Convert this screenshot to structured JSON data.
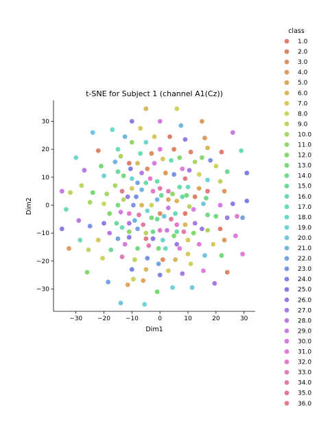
{
  "chart_data": {
    "type": "scatter",
    "title": "t-SNE for Subject 1 (channel A1(Cz))",
    "xlabel": "Dim1",
    "ylabel": "Dim2",
    "xlim": [
      -38,
      34
    ],
    "ylim": [
      -38,
      37.5
    ],
    "xticks": [
      -30,
      -20,
      -10,
      0,
      10,
      20,
      30
    ],
    "yticks": [
      -30,
      -20,
      -10,
      0,
      10,
      20,
      30
    ],
    "grid": false,
    "legend": {
      "title": "class",
      "placement": "right-outside",
      "entries": [
        "1.0",
        "2.0",
        "3.0",
        "4.0",
        "5.0",
        "6.0",
        "7.0",
        "8.0",
        "9.0",
        "10.0",
        "11.0",
        "12.0",
        "13.0",
        "14.0",
        "15.0",
        "16.0",
        "17.0",
        "18.0",
        "19.0",
        "20.0",
        "21.0",
        "22.0",
        "23.0",
        "24.0",
        "25.0",
        "26.0",
        "27.0",
        "28.0",
        "29.0",
        "30.0",
        "31.0",
        "32.0",
        "33.0",
        "34.0",
        "35.0",
        "36.0"
      ]
    },
    "colors": [
      "#de6f61",
      "#dc7857",
      "#da8452",
      "#d9904e",
      "#d79f4b",
      "#d4b04a",
      "#d2c24b",
      "#c8d04e",
      "#b4d051",
      "#a0d056",
      "#8ad25a",
      "#76d460",
      "#68d56a",
      "#62d57a",
      "#5fd68b",
      "#5dd69d",
      "#5dd6b1",
      "#5dd4c4",
      "#5fcfd4",
      "#62c0dc",
      "#65aedf",
      "#689be0",
      "#6c87e0",
      "#7174e0",
      "#7e6ee0",
      "#8e6ddf",
      "#9f6ddf",
      "#b06ddf",
      "#c26ddf",
      "#d26dde",
      "#dc6dd6",
      "#de6dc4",
      "#de6db1",
      "#de6d9e",
      "#de6d8b",
      "#de6d79"
    ],
    "points": [
      {
        "x": -5,
        "y": 34.5,
        "c": 5
      },
      {
        "x": 6,
        "y": 34.5,
        "c": 7
      },
      {
        "x": 15,
        "y": 30,
        "c": 3
      },
      {
        "x": -10,
        "y": 30,
        "c": 24
      },
      {
        "x": 0,
        "y": 30,
        "c": 29
      },
      {
        "x": 7.5,
        "y": 28.5,
        "c": 20
      },
      {
        "x": -17,
        "y": 27,
        "c": 17
      },
      {
        "x": -24,
        "y": 26,
        "c": 19
      },
      {
        "x": -7,
        "y": 27.5,
        "c": 6
      },
      {
        "x": 26,
        "y": 26,
        "c": 28
      },
      {
        "x": -12.5,
        "y": 24.5,
        "c": 20
      },
      {
        "x": 3.5,
        "y": 24.5,
        "c": 0
      },
      {
        "x": 16,
        "y": 24,
        "c": 3
      },
      {
        "x": -2,
        "y": 24.5,
        "c": 6
      },
      {
        "x": 9,
        "y": 23.5,
        "c": 25
      },
      {
        "x": -10,
        "y": 22.5,
        "c": 10
      },
      {
        "x": -5,
        "y": 22.5,
        "c": 17
      },
      {
        "x": -22,
        "y": 19.5,
        "c": 1
      },
      {
        "x": -15,
        "y": 20,
        "c": 16
      },
      {
        "x": 0,
        "y": 20,
        "c": 30
      },
      {
        "x": 5,
        "y": 20,
        "c": 1
      },
      {
        "x": 17,
        "y": 20.5,
        "c": 5
      },
      {
        "x": 11,
        "y": 19,
        "c": 1
      },
      {
        "x": 22,
        "y": 19,
        "c": 0
      },
      {
        "x": 29,
        "y": 19.5,
        "c": 16
      },
      {
        "x": -7,
        "y": 18.5,
        "c": 16
      },
      {
        "x": -3,
        "y": 18.5,
        "c": 2
      },
      {
        "x": -30,
        "y": 17,
        "c": 17
      },
      {
        "x": -14,
        "y": 17.5,
        "c": 9
      },
      {
        "x": 7,
        "y": 17,
        "c": 11
      },
      {
        "x": 15,
        "y": 17,
        "c": 11
      },
      {
        "x": -11,
        "y": 15,
        "c": 0
      },
      {
        "x": -8,
        "y": 15,
        "c": 5
      },
      {
        "x": -2,
        "y": 15,
        "c": 29
      },
      {
        "x": 1,
        "y": 16.5,
        "c": 6
      },
      {
        "x": 4,
        "y": 16,
        "c": 16
      },
      {
        "x": 12.5,
        "y": 15.5,
        "c": 9
      },
      {
        "x": 18,
        "y": 16,
        "c": 22
      },
      {
        "x": -16,
        "y": 15.5,
        "c": 20
      },
      {
        "x": -27,
        "y": 12.5,
        "c": 27
      },
      {
        "x": -21,
        "y": 14,
        "c": 12
      },
      {
        "x": -10.5,
        "y": 13,
        "c": 23
      },
      {
        "x": -4.5,
        "y": 13,
        "c": 2
      },
      {
        "x": 8,
        "y": 13,
        "c": 30
      },
      {
        "x": 10.5,
        "y": 12.5,
        "c": 26
      },
      {
        "x": 20,
        "y": 14,
        "c": 7
      },
      {
        "x": -15,
        "y": 12,
        "c": 14
      },
      {
        "x": -6.5,
        "y": 11.5,
        "c": 27
      },
      {
        "x": 2,
        "y": 11.5,
        "c": 3
      },
      {
        "x": 5,
        "y": 11,
        "c": 22
      },
      {
        "x": 14,
        "y": 11,
        "c": 7
      },
      {
        "x": 24,
        "y": 12,
        "c": 14
      },
      {
        "x": 31,
        "y": 11.5,
        "c": 23
      },
      {
        "x": -20,
        "y": 10.5,
        "c": 18
      },
      {
        "x": -13,
        "y": 10.5,
        "c": 12
      },
      {
        "x": -10,
        "y": 9.5,
        "c": 18
      },
      {
        "x": -3.5,
        "y": 9.5,
        "c": 31
      },
      {
        "x": -1,
        "y": 8.5,
        "c": 15
      },
      {
        "x": 9,
        "y": 9.5,
        "c": 35
      },
      {
        "x": 17,
        "y": 9,
        "c": 18
      },
      {
        "x": 21.5,
        "y": 8.5,
        "c": 8
      },
      {
        "x": -16,
        "y": 7,
        "c": 9
      },
      {
        "x": -8,
        "y": 8,
        "c": 21
      },
      {
        "x": -5,
        "y": 8,
        "c": 15
      },
      {
        "x": 0,
        "y": 6,
        "c": 33
      },
      {
        "x": 7,
        "y": 6.5,
        "c": 15
      },
      {
        "x": 10,
        "y": 6.5,
        "c": 17
      },
      {
        "x": 14,
        "y": 6,
        "c": 4
      },
      {
        "x": 23,
        "y": 5,
        "c": 3
      },
      {
        "x": -35,
        "y": 5,
        "c": 28
      },
      {
        "x": -28,
        "y": 7,
        "c": 8
      },
      {
        "x": -13.5,
        "y": 5,
        "c": 34
      },
      {
        "x": -10,
        "y": 6,
        "c": 6
      },
      {
        "x": -6.5,
        "y": 5.5,
        "c": 20
      },
      {
        "x": -2.5,
        "y": 5,
        "c": 31
      },
      {
        "x": 3,
        "y": 5,
        "c": 32
      },
      {
        "x": 4.5,
        "y": 4,
        "c": 10
      },
      {
        "x": 9.5,
        "y": 3.5,
        "c": 12
      },
      {
        "x": 12.5,
        "y": 3,
        "c": 1
      },
      {
        "x": 17,
        "y": 5,
        "c": 35
      },
      {
        "x": -32,
        "y": 4.5,
        "c": 8
      },
      {
        "x": -24,
        "y": 4.5,
        "c": 12
      },
      {
        "x": -19,
        "y": 4,
        "c": 9
      },
      {
        "x": -11.5,
        "y": 3,
        "c": 25
      },
      {
        "x": -8.5,
        "y": 3,
        "c": 22
      },
      {
        "x": -1,
        "y": 2,
        "c": 20
      },
      {
        "x": 0.5,
        "y": 3.5,
        "c": 14
      },
      {
        "x": 8,
        "y": 3,
        "c": 15
      },
      {
        "x": 16.5,
        "y": 2.5,
        "c": 13
      },
      {
        "x": -25,
        "y": 1,
        "c": 9
      },
      {
        "x": -20,
        "y": 0.5,
        "c": 7
      },
      {
        "x": -15,
        "y": 0,
        "c": 12
      },
      {
        "x": -13,
        "y": 2,
        "c": 8
      },
      {
        "x": -9.5,
        "y": 0,
        "c": 22
      },
      {
        "x": -6.5,
        "y": 0,
        "c": 5
      },
      {
        "x": -3,
        "y": 0,
        "c": 7
      },
      {
        "x": 3,
        "y": 2,
        "c": 4
      },
      {
        "x": 6,
        "y": 1.5,
        "c": 5
      },
      {
        "x": 10.5,
        "y": -0.5,
        "c": 8
      },
      {
        "x": 15.5,
        "y": 0.5,
        "c": 19
      },
      {
        "x": 21.5,
        "y": 0,
        "c": 29
      },
      {
        "x": 26,
        "y": 0.5,
        "c": 24
      },
      {
        "x": 31,
        "y": 1.5,
        "c": 23
      },
      {
        "x": -33.5,
        "y": -1.5,
        "c": 16
      },
      {
        "x": -18,
        "y": -3,
        "c": 11
      },
      {
        "x": -14,
        "y": -2.5,
        "c": 29
      },
      {
        "x": -11,
        "y": -3,
        "c": 31
      },
      {
        "x": -7.5,
        "y": -3.5,
        "c": 33
      },
      {
        "x": -4.5,
        "y": -2,
        "c": 17
      },
      {
        "x": 0,
        "y": -3,
        "c": 2
      },
      {
        "x": 3,
        "y": -1,
        "c": 28
      },
      {
        "x": 5.5,
        "y": -3,
        "c": 16
      },
      {
        "x": 9,
        "y": -3,
        "c": 0
      },
      {
        "x": 12,
        "y": -1.5,
        "c": 29
      },
      {
        "x": 17,
        "y": -3.5,
        "c": 13
      },
      {
        "x": 20,
        "y": -4,
        "c": 12
      },
      {
        "x": 24,
        "y": -4.5,
        "c": 25
      },
      {
        "x": 27.5,
        "y": -4,
        "c": 31
      },
      {
        "x": 29.5,
        "y": -4.5,
        "c": 21
      },
      {
        "x": -29,
        "y": -5.5,
        "c": 27
      },
      {
        "x": -25,
        "y": -7.5,
        "c": 22
      },
      {
        "x": -20,
        "y": -6.5,
        "c": 24
      },
      {
        "x": -15.5,
        "y": -6.5,
        "c": 14
      },
      {
        "x": -11,
        "y": -6.5,
        "c": 26
      },
      {
        "x": -9,
        "y": -5.5,
        "c": 20
      },
      {
        "x": -6,
        "y": -7,
        "c": 33
      },
      {
        "x": -3,
        "y": -4.5,
        "c": 12
      },
      {
        "x": -1,
        "y": -5,
        "c": 14
      },
      {
        "x": 1.5,
        "y": -4,
        "c": 19
      },
      {
        "x": 4,
        "y": -5,
        "c": 34
      },
      {
        "x": 6,
        "y": -7,
        "c": 31
      },
      {
        "x": 9,
        "y": -7,
        "c": 5
      },
      {
        "x": 12.5,
        "y": -6.5,
        "c": 26
      },
      {
        "x": 15,
        "y": -8.5,
        "c": 25
      },
      {
        "x": -35,
        "y": -8.5,
        "c": 24
      },
      {
        "x": -18,
        "y": -10,
        "c": 27
      },
      {
        "x": -13.5,
        "y": -8,
        "c": 16
      },
      {
        "x": -11,
        "y": -9.5,
        "c": 10
      },
      {
        "x": -8,
        "y": -8.5,
        "c": 21
      },
      {
        "x": -5,
        "y": -10,
        "c": 8
      },
      {
        "x": -2.5,
        "y": -9.5,
        "c": 14
      },
      {
        "x": 0,
        "y": -9,
        "c": 31
      },
      {
        "x": 2.5,
        "y": -9,
        "c": 28
      },
      {
        "x": 6,
        "y": -9.5,
        "c": 15
      },
      {
        "x": 8.5,
        "y": -9.5,
        "c": 33
      },
      {
        "x": 12,
        "y": -10,
        "c": 11
      },
      {
        "x": 17,
        "y": -9,
        "c": 9
      },
      {
        "x": 21.5,
        "y": -8.5,
        "c": 0
      },
      {
        "x": 27,
        "y": -11,
        "c": 30
      },
      {
        "x": -32.5,
        "y": -15.5,
        "c": 3
      },
      {
        "x": -28.5,
        "y": -12.5,
        "c": 16
      },
      {
        "x": -22,
        "y": -12.5,
        "c": 6
      },
      {
        "x": -15,
        "y": -12,
        "c": 21
      },
      {
        "x": -11,
        "y": -11.5,
        "c": 24
      },
      {
        "x": -5,
        "y": -12,
        "c": 35
      },
      {
        "x": -2.5,
        "y": -12,
        "c": 24
      },
      {
        "x": 1,
        "y": -12.5,
        "c": 18
      },
      {
        "x": 5,
        "y": -11,
        "c": 11
      },
      {
        "x": 10,
        "y": -12.5,
        "c": 6
      },
      {
        "x": 23,
        "y": -12.5,
        "c": 3
      },
      {
        "x": -17.5,
        "y": -16,
        "c": 14
      },
      {
        "x": -12.5,
        "y": -14,
        "c": 29
      },
      {
        "x": -8,
        "y": -15.5,
        "c": 13
      },
      {
        "x": -4,
        "y": -14.5,
        "c": 32
      },
      {
        "x": -0.5,
        "y": -15.5,
        "c": 12
      },
      {
        "x": 2,
        "y": -15.5,
        "c": 17
      },
      {
        "x": 6,
        "y": -14,
        "c": 25
      },
      {
        "x": 7,
        "y": -15.5,
        "c": 30
      },
      {
        "x": 14,
        "y": -14,
        "c": 30
      },
      {
        "x": 19,
        "y": -14,
        "c": 6
      },
      {
        "x": -25.5,
        "y": -16,
        "c": 8
      },
      {
        "x": -20.5,
        "y": -19,
        "c": 7
      },
      {
        "x": -13.5,
        "y": -18.5,
        "c": 32
      },
      {
        "x": -9,
        "y": -19.5,
        "c": 8
      },
      {
        "x": -4.5,
        "y": -19,
        "c": 22
      },
      {
        "x": 1,
        "y": -19.5,
        "c": 2
      },
      {
        "x": 5.5,
        "y": -19.5,
        "c": 5
      },
      {
        "x": 10,
        "y": -17.5,
        "c": 6
      },
      {
        "x": 16,
        "y": -18,
        "c": 19
      },
      {
        "x": 22,
        "y": -18,
        "c": 12
      },
      {
        "x": 29.5,
        "y": -17.5,
        "c": 30
      },
      {
        "x": -26,
        "y": -24,
        "c": 11
      },
      {
        "x": -10,
        "y": -23,
        "c": 23
      },
      {
        "x": -5,
        "y": -23,
        "c": 5
      },
      {
        "x": -0.5,
        "y": -21,
        "c": 21
      },
      {
        "x": 3,
        "y": -23.5,
        "c": 6
      },
      {
        "x": 8,
        "y": -24.5,
        "c": 26
      },
      {
        "x": 11,
        "y": -21,
        "c": 7
      },
      {
        "x": 15.5,
        "y": -23.5,
        "c": 30
      },
      {
        "x": 24,
        "y": -24,
        "c": 1
      },
      {
        "x": -18.5,
        "y": -27.5,
        "c": 21
      },
      {
        "x": -11.5,
        "y": -28.5,
        "c": 4
      },
      {
        "x": -9.5,
        "y": -26.5,
        "c": 7
      },
      {
        "x": -6,
        "y": -27,
        "c": 4
      },
      {
        "x": 0,
        "y": -25,
        "c": 23
      },
      {
        "x": 4.5,
        "y": -29.5,
        "c": 18
      },
      {
        "x": 11.5,
        "y": -29.5,
        "c": 19
      },
      {
        "x": 19.5,
        "y": -28,
        "c": 26
      },
      {
        "x": -1,
        "y": -31,
        "c": 12
      },
      {
        "x": -14,
        "y": -35,
        "c": 19
      },
      {
        "x": -5.5,
        "y": -35.5,
        "c": 18
      }
    ]
  }
}
